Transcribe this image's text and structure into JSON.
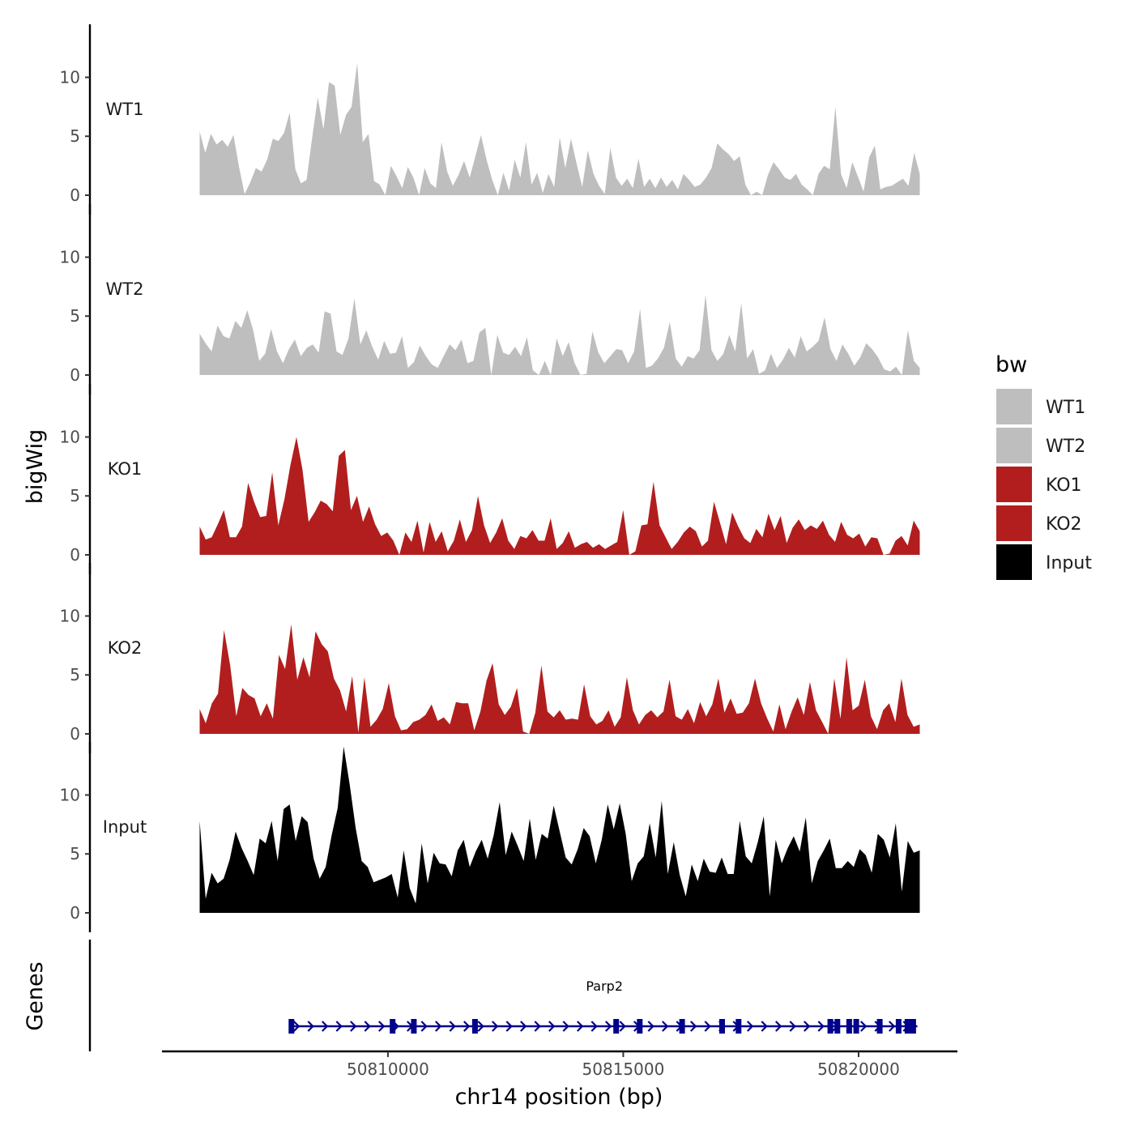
{
  "chart_data": {
    "type": "area",
    "title": "",
    "ylabel": "bigWig",
    "genes_label": "Genes",
    "xlabel": "chr14 position (bp)",
    "chromosome": "chr14",
    "xlim": [
      50805200,
      50822100
    ],
    "data_xrange": [
      50806000,
      50821300
    ],
    "ylim": [
      0,
      14.5
    ],
    "y_ticks": [
      0,
      5,
      10
    ],
    "x_ticks": [
      50810000,
      50815000,
      50820000
    ],
    "x_tick_labels": [
      "50810000",
      "50815000",
      "50820000"
    ],
    "legend": {
      "title": "bw",
      "position": "right",
      "entries": [
        {
          "label": "WT1",
          "color": "#bebebe"
        },
        {
          "label": "WT2",
          "color": "#bebebe"
        },
        {
          "label": "KO1",
          "color": "#b21e1e"
        },
        {
          "label": "KO2",
          "color": "#b21e1e"
        },
        {
          "label": "Input",
          "color": "#000000"
        }
      ]
    },
    "series": [
      {
        "name": "WT1",
        "color": "#bebebe",
        "values": [
          5.4,
          3.6,
          5.2,
          4.3,
          4.7,
          4.1,
          5.1,
          2.4,
          0.1,
          1.1,
          2.3,
          2.0,
          3.0,
          4.8,
          4.6,
          5.3,
          7.0,
          2.2,
          1.0,
          1.3,
          4.9,
          8.3,
          5.6,
          9.6,
          9.3,
          5.1,
          6.8,
          7.5,
          11.2,
          4.5,
          5.2,
          1.2,
          0.9,
          0.0,
          2.5,
          1.6,
          0.6,
          2.4,
          1.5,
          0.0,
          2.3,
          1.0,
          0.6,
          4.5,
          2.0,
          0.8,
          1.7,
          2.9,
          1.5,
          3.3,
          5.1,
          3.0,
          1.3,
          0.0,
          1.9,
          0.4,
          3.0,
          1.5,
          4.5,
          0.9,
          1.9,
          0.2,
          1.8,
          0.7,
          4.9,
          2.3,
          4.8,
          2.7,
          0.7,
          3.8,
          1.8,
          0.8,
          0.1,
          4.0,
          1.5,
          0.8,
          1.4,
          0.6,
          3.1,
          0.7,
          1.4,
          0.6,
          1.5,
          0.7,
          1.3,
          0.5,
          1.8,
          1.3,
          0.7,
          0.9,
          1.5,
          2.3,
          4.4,
          3.9,
          3.5,
          2.9,
          3.3,
          0.9,
          0.0,
          0.3,
          0.0,
          1.7,
          2.8,
          2.2,
          1.5,
          1.3,
          1.8,
          0.9,
          0.5,
          0.0,
          1.8,
          2.5,
          2.2,
          7.5,
          1.8,
          0.6,
          2.8,
          1.6,
          0.3,
          3.2,
          4.2,
          0.5,
          0.7,
          0.8,
          1.1,
          1.4,
          0.8,
          3.6,
          1.8
        ]
      },
      {
        "name": "WT2",
        "color": "#bebebe",
        "values": [
          3.5,
          2.7,
          2.0,
          4.2,
          3.3,
          3.1,
          4.6,
          4.0,
          5.5,
          3.8,
          1.2,
          1.8,
          3.9,
          2.0,
          1.0,
          2.2,
          3.0,
          1.6,
          2.3,
          2.6,
          1.9,
          5.4,
          5.2,
          2.0,
          1.7,
          3.1,
          6.5,
          2.6,
          3.8,
          2.4,
          1.3,
          2.9,
          1.8,
          1.9,
          3.3,
          0.6,
          1.1,
          2.5,
          1.6,
          0.9,
          0.6,
          1.6,
          2.6,
          2.1,
          3.0,
          1.0,
          1.2,
          3.6,
          4.0,
          0.0,
          3.4,
          1.9,
          1.7,
          2.4,
          1.6,
          3.2,
          0.4,
          0.0,
          1.2,
          0.0,
          3.1,
          1.6,
          2.8,
          1.0,
          0.0,
          0.1,
          3.7,
          1.9,
          1.0,
          1.6,
          2.2,
          2.1,
          1.0,
          2.0,
          5.6,
          0.6,
          0.8,
          1.4,
          2.3,
          4.5,
          1.4,
          0.7,
          1.6,
          1.4,
          2.1,
          6.8,
          2.1,
          1.2,
          1.8,
          3.4,
          2.0,
          6.1,
          1.4,
          2.2,
          0.1,
          0.4,
          1.8,
          0.6,
          1.3,
          2.3,
          1.5,
          3.3,
          2.0,
          2.4,
          2.9,
          4.9,
          2.2,
          1.2,
          2.6,
          1.8,
          0.8,
          1.5,
          2.7,
          2.2,
          1.5,
          0.5,
          0.3,
          0.7,
          0.0,
          3.8,
          1.2,
          0.6
        ]
      },
      {
        "name": "KO1",
        "color": "#b21e1e",
        "values": [
          2.4,
          1.3,
          1.5,
          2.6,
          3.8,
          1.5,
          1.5,
          2.4,
          6.1,
          4.5,
          3.2,
          3.3,
          7.0,
          2.5,
          4.7,
          7.6,
          10.0,
          7.2,
          2.8,
          3.6,
          4.6,
          4.3,
          3.7,
          8.4,
          8.9,
          3.8,
          5.0,
          2.8,
          4.1,
          2.6,
          1.6,
          1.9,
          1.2,
          0.0,
          1.9,
          1.1,
          2.9,
          0.2,
          2.8,
          1.1,
          2.0,
          0.3,
          1.2,
          3.0,
          1.1,
          2.1,
          5.0,
          2.5,
          1.0,
          1.9,
          3.1,
          1.2,
          0.5,
          1.6,
          1.4,
          2.1,
          1.2,
          1.2,
          3.1,
          0.5,
          1.0,
          2.0,
          0.6,
          0.9,
          1.1,
          0.6,
          0.9,
          0.5,
          0.8,
          1.1,
          3.8,
          0.0,
          0.3,
          2.5,
          2.6,
          6.2,
          2.5,
          1.5,
          0.5,
          1.1,
          1.9,
          2.4,
          2.0,
          0.7,
          1.2,
          4.5,
          2.7,
          0.9,
          3.6,
          2.4,
          1.4,
          1.0,
          2.2,
          1.5,
          3.5,
          2.1,
          3.3,
          1.0,
          2.3,
          3.0,
          2.1,
          2.5,
          2.2,
          2.9,
          1.7,
          1.1,
          2.8,
          1.7,
          1.4,
          1.8,
          0.7,
          1.5,
          1.4,
          0.0,
          0.1,
          1.2,
          1.6,
          0.8,
          2.9,
          2.0
        ]
      },
      {
        "name": "KO2",
        "color": "#b21e1e",
        "values": [
          2.1,
          0.9,
          2.6,
          3.4,
          8.8,
          5.8,
          1.5,
          3.9,
          3.3,
          3.0,
          1.5,
          2.6,
          1.3,
          6.7,
          5.5,
          9.3,
          4.6,
          6.5,
          4.8,
          8.7,
          7.6,
          7.0,
          4.7,
          3.7,
          1.9,
          4.9,
          0.1,
          4.8,
          0.6,
          1.2,
          2.1,
          4.3,
          1.5,
          0.3,
          0.4,
          1.0,
          1.2,
          1.6,
          2.5,
          1.1,
          1.4,
          0.8,
          2.7,
          2.6,
          2.6,
          0.3,
          1.9,
          4.5,
          6.0,
          2.5,
          1.6,
          2.3,
          3.9,
          0.2,
          0.0,
          1.8,
          5.8,
          1.9,
          1.4,
          2.0,
          1.2,
          1.3,
          1.2,
          4.2,
          1.5,
          0.8,
          1.1,
          2.0,
          0.6,
          1.4,
          4.8,
          2.0,
          0.8,
          1.6,
          2.0,
          1.4,
          1.9,
          4.6,
          1.5,
          1.2,
          2.1,
          0.9,
          2.7,
          1.5,
          2.5,
          4.7,
          1.8,
          3.0,
          1.7,
          1.8,
          2.6,
          4.7,
          2.6,
          1.3,
          0.2,
          2.5,
          0.4,
          1.9,
          3.1,
          1.6,
          4.4,
          2.0,
          1.0,
          0.0,
          4.7,
          1.3,
          6.5,
          2.0,
          2.4,
          4.6,
          1.5,
          0.4,
          2.0,
          2.6,
          1.0,
          4.7,
          1.6,
          0.6,
          0.8
        ]
      },
      {
        "name": "Input",
        "color": "#000000",
        "values": [
          7.8,
          1.2,
          3.4,
          2.5,
          2.9,
          4.5,
          6.9,
          5.5,
          4.4,
          3.2,
          6.3,
          5.9,
          7.8,
          4.4,
          8.8,
          9.2,
          6.1,
          8.2,
          7.7,
          4.6,
          2.9,
          3.9,
          6.6,
          8.9,
          14.1,
          10.9,
          7.2,
          4.4,
          3.9,
          2.6,
          2.8,
          3.0,
          3.3,
          1.3,
          5.3,
          2.1,
          0.8,
          5.9,
          2.5,
          5.1,
          4.2,
          4.1,
          3.1,
          5.3,
          6.2,
          3.9,
          5.2,
          6.2,
          4.6,
          6.6,
          9.4,
          4.9,
          6.9,
          5.7,
          4.4,
          8.0,
          4.5,
          6.7,
          6.3,
          9.1,
          6.9,
          4.7,
          4.1,
          5.4,
          7.2,
          6.5,
          4.2,
          6.2,
          9.2,
          7.1,
          9.3,
          6.7,
          2.7,
          4.2,
          4.8,
          7.6,
          4.7,
          9.5,
          3.3,
          6.0,
          3.2,
          1.4,
          4.1,
          2.7,
          4.6,
          3.5,
          3.4,
          4.7,
          3.3,
          3.3,
          7.8,
          4.8,
          4.2,
          6.0,
          8.2,
          1.4,
          6.2,
          4.2,
          5.5,
          6.5,
          5.2,
          8.1,
          2.5,
          4.4,
          5.3,
          6.3,
          3.8,
          3.8,
          4.4,
          3.9,
          5.4,
          4.9,
          3.4,
          6.7,
          6.2,
          4.7,
          7.6,
          1.8,
          6.1,
          5.1,
          5.3
        ]
      }
    ],
    "genes": [
      {
        "name": "Parp2",
        "start": 50807950,
        "end": 50821250,
        "strand": "+",
        "color": "#00008b",
        "exons": [
          50807950,
          50810100,
          50810550,
          50811850,
          50814850,
          50815350,
          50816250,
          50817100,
          50817450,
          50819400,
          50819550,
          50819800,
          50819950,
          50820450,
          50820850,
          50821100
        ]
      }
    ]
  }
}
